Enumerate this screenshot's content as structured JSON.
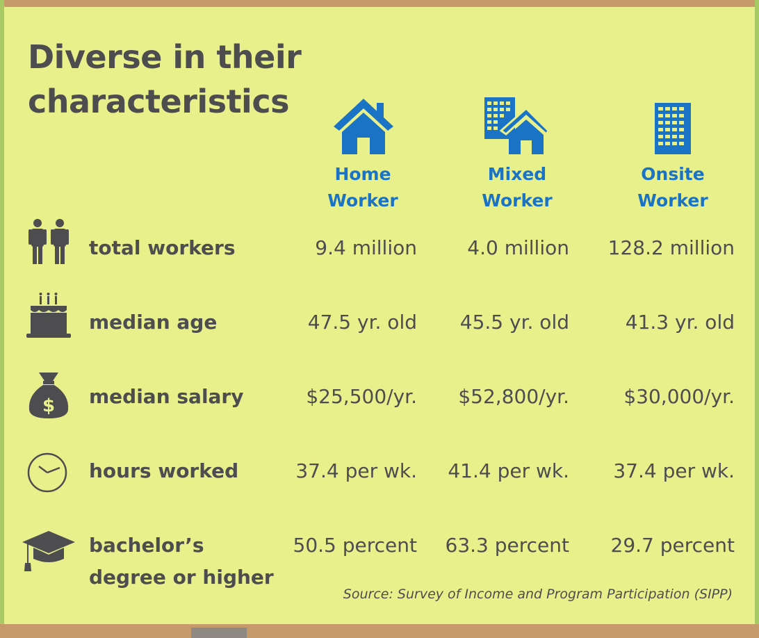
{
  "title": "Diverse in their characteristics",
  "columns": [
    {
      "label_line1": "Home",
      "label_line2": "Worker",
      "icon": "house-icon"
    },
    {
      "label_line1": "Mixed",
      "label_line2": "Worker",
      "icon": "building-house-icon"
    },
    {
      "label_line1": "Onsite",
      "label_line2": "Worker",
      "icon": "office-building-icon"
    }
  ],
  "rows": [
    {
      "label_line1": "total workers",
      "label_line2": "",
      "icon": "people-icon",
      "values": [
        "9.4 million",
        "4.0 million",
        "128.2 million"
      ]
    },
    {
      "label_line1": "median age",
      "label_line2": "",
      "icon": "birthday-cake-icon",
      "values": [
        "47.5 yr. old",
        "45.5 yr. old",
        "41.3 yr. old"
      ]
    },
    {
      "label_line1": "median salary",
      "label_line2": "",
      "icon": "money-bag-icon",
      "values": [
        "$25,500/yr.",
        "$52,800/yr.",
        "$30,000/yr."
      ]
    },
    {
      "label_line1": "hours worked",
      "label_line2": "",
      "icon": "clock-icon",
      "values": [
        "37.4 per wk.",
        "41.4 per wk.",
        "37.4 per wk."
      ]
    },
    {
      "label_line1": "bachelor’s",
      "label_line2": "degree or higher",
      "icon": "graduation-cap-icon",
      "values": [
        "50.5 percent",
        "63.3 percent",
        "29.7 percent"
      ]
    }
  ],
  "source": "Source:  Survey of Income and Program Participation  (SIPP)",
  "colors": {
    "background": "#e8f08c",
    "accent": "#1a73c4",
    "text": "#4d4d4f",
    "frame": "#c69a6b"
  }
}
